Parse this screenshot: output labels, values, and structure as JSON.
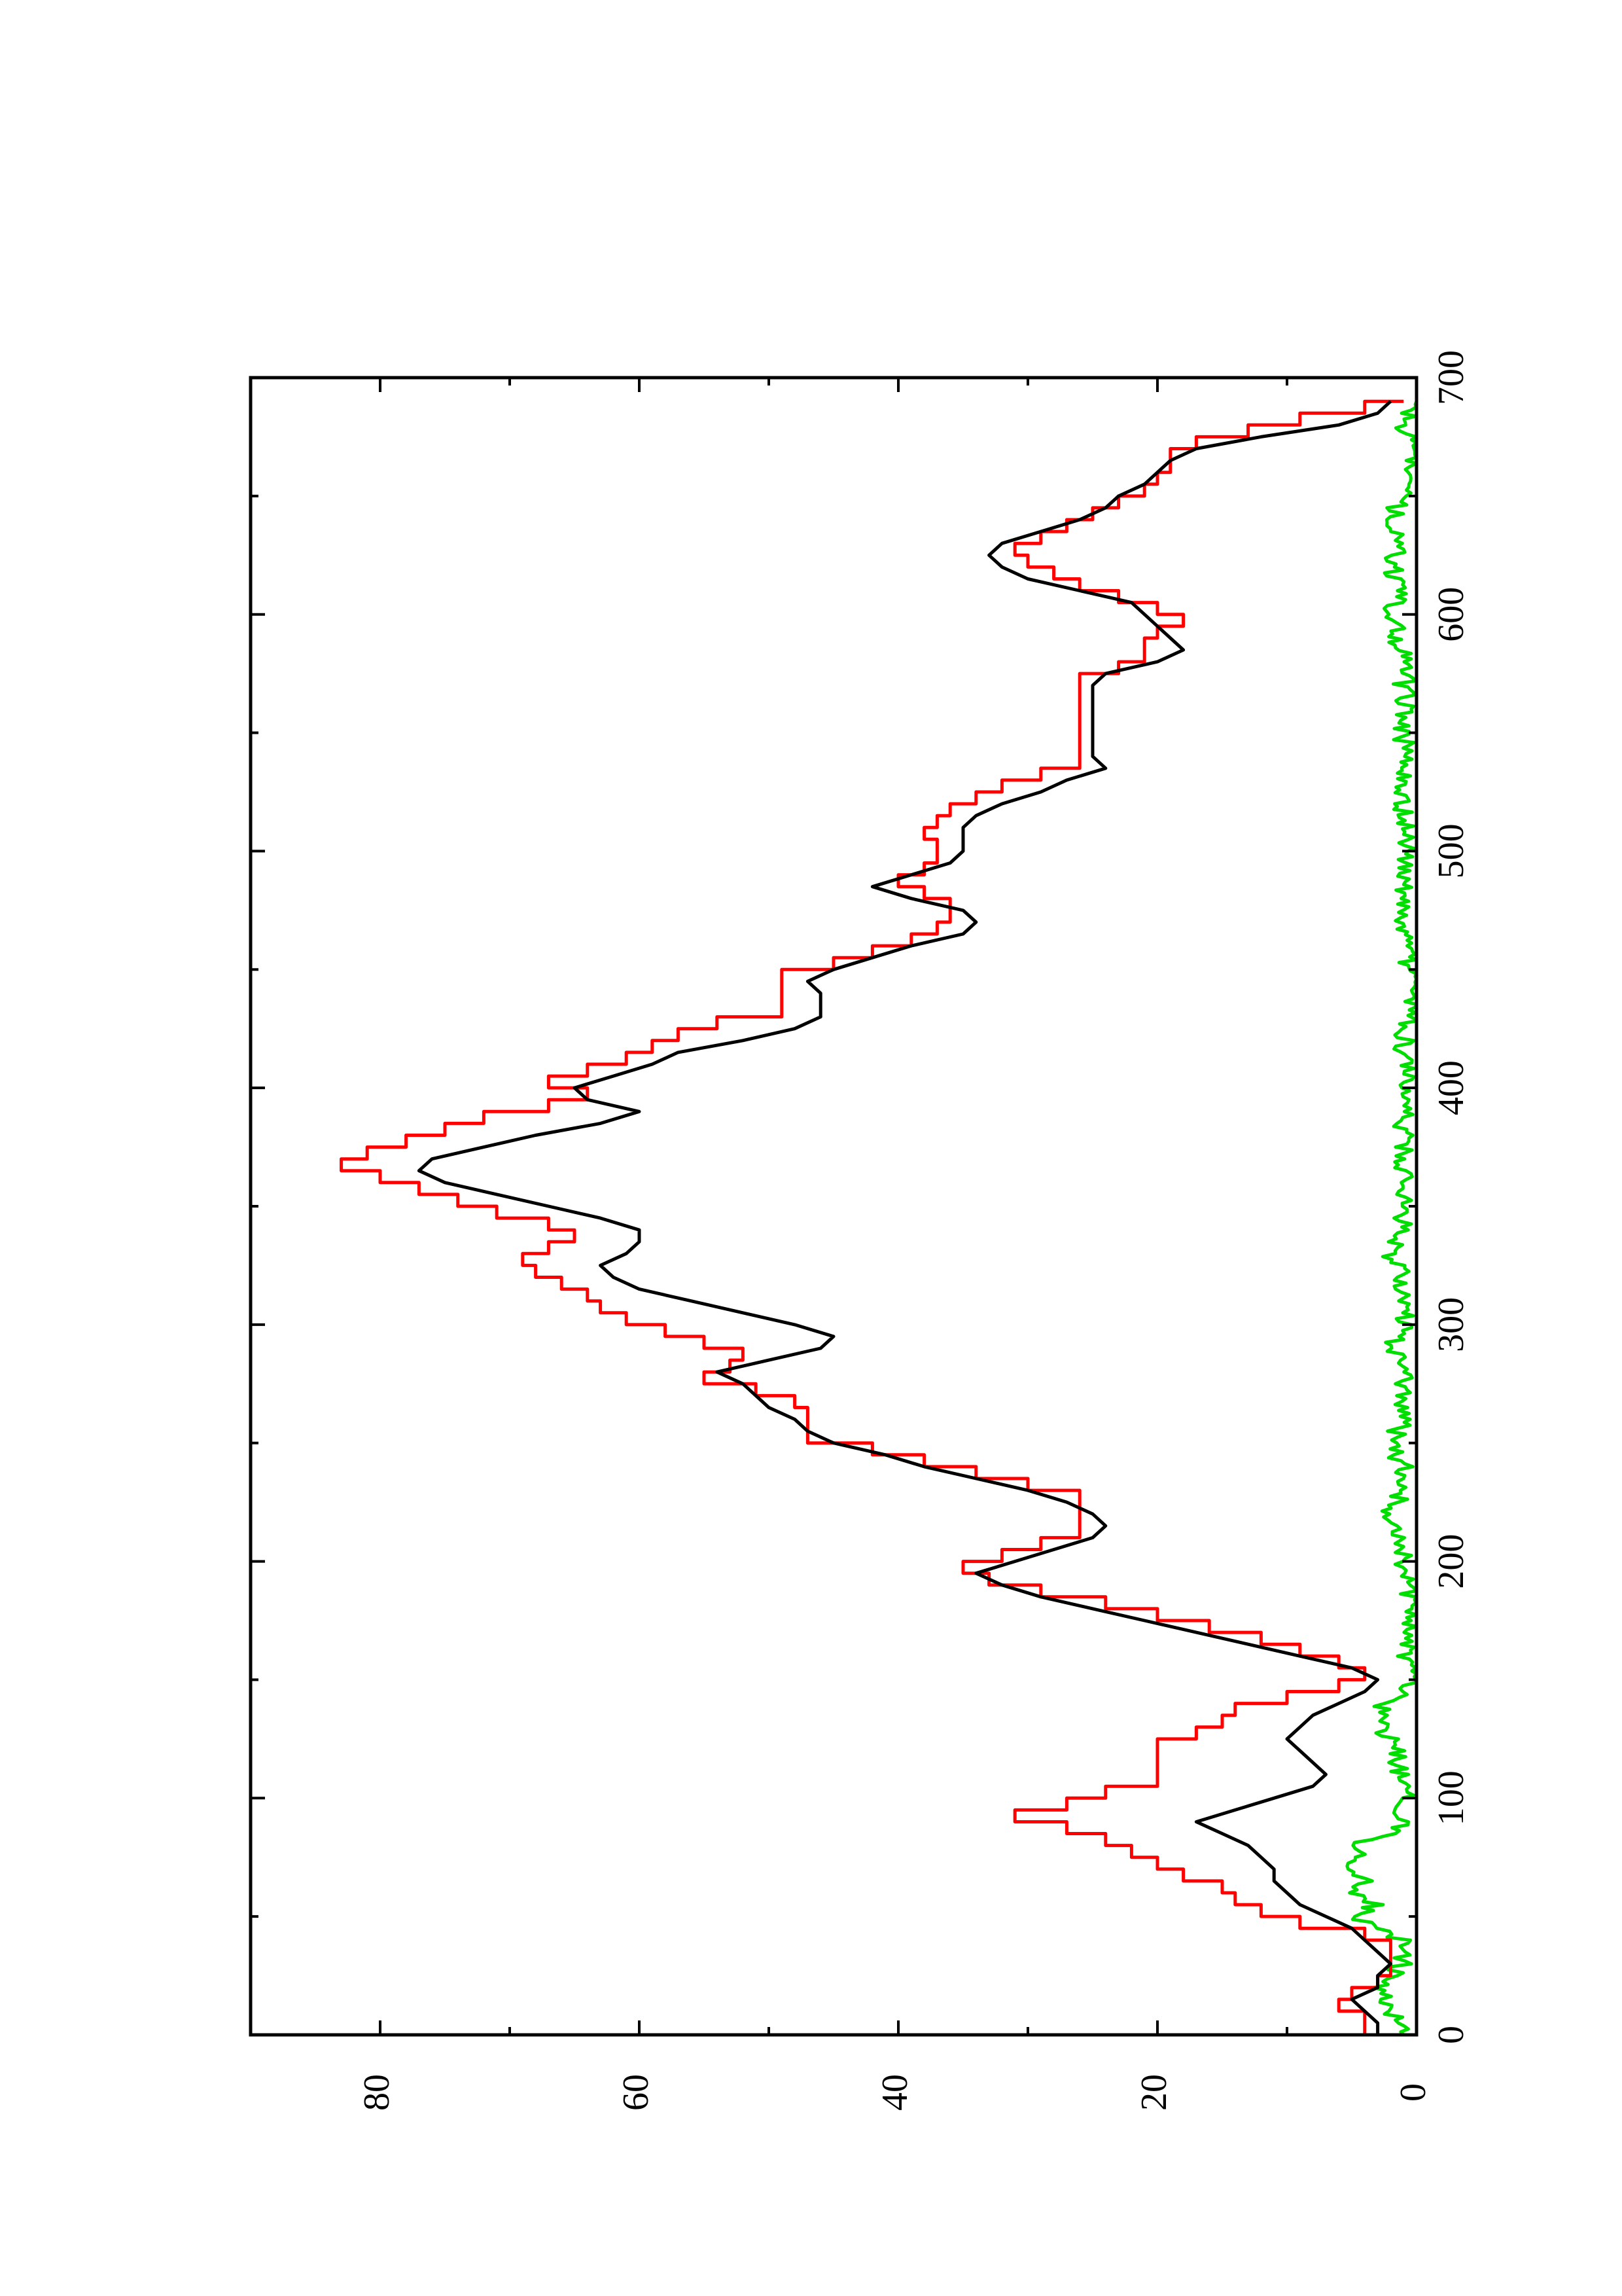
{
  "chart_data": {
    "type": "line",
    "title": "",
    "xlabel": "",
    "ylabel": "",
    "orientation": "rotated-90-ccw",
    "xlim": [
      0,
      700
    ],
    "ylim": [
      0,
      90
    ],
    "x_ticks": [
      "0",
      "100",
      "200",
      "300",
      "400",
      "500",
      "600",
      "700"
    ],
    "y_ticks": [
      "0",
      "20",
      "40",
      "60",
      "80"
    ],
    "x_minor_step": 50,
    "grid": false,
    "legend": "none",
    "series": [
      {
        "color": "#ff0000",
        "style": "step",
        "points": [
          [
            0,
            4
          ],
          [
            5,
            4
          ],
          [
            10,
            6
          ],
          [
            15,
            5
          ],
          [
            20,
            3
          ],
          [
            25,
            2
          ],
          [
            40,
            4
          ],
          [
            45,
            9
          ],
          [
            50,
            12
          ],
          [
            55,
            14
          ],
          [
            60,
            15
          ],
          [
            65,
            18
          ],
          [
            70,
            20
          ],
          [
            75,
            22
          ],
          [
            80,
            24
          ],
          [
            85,
            27
          ],
          [
            90,
            31
          ],
          [
            95,
            27
          ],
          [
            100,
            24
          ],
          [
            105,
            20
          ],
          [
            120,
            20
          ],
          [
            125,
            17
          ],
          [
            130,
            15
          ],
          [
            135,
            14
          ],
          [
            140,
            10
          ],
          [
            145,
            6
          ],
          [
            150,
            4
          ],
          [
            155,
            6
          ],
          [
            160,
            9
          ],
          [
            165,
            12
          ],
          [
            170,
            16
          ],
          [
            175,
            20
          ],
          [
            180,
            24
          ],
          [
            185,
            29
          ],
          [
            190,
            33
          ],
          [
            195,
            35
          ],
          [
            200,
            32
          ],
          [
            205,
            29
          ],
          [
            210,
            26
          ],
          [
            215,
            26
          ],
          [
            225,
            26
          ],
          [
            230,
            30
          ],
          [
            235,
            34
          ],
          [
            240,
            38
          ],
          [
            245,
            42
          ],
          [
            250,
            47
          ],
          [
            265,
            48
          ],
          [
            270,
            51
          ],
          [
            275,
            55
          ],
          [
            280,
            53
          ],
          [
            285,
            52
          ],
          [
            290,
            55
          ],
          [
            295,
            58
          ],
          [
            300,
            61
          ],
          [
            305,
            63
          ],
          [
            310,
            64
          ],
          [
            315,
            66
          ],
          [
            320,
            68
          ],
          [
            325,
            69
          ],
          [
            330,
            67
          ],
          [
            335,
            65
          ],
          [
            340,
            67
          ],
          [
            345,
            71
          ],
          [
            350,
            74
          ],
          [
            355,
            77
          ],
          [
            360,
            80
          ],
          [
            365,
            83
          ],
          [
            370,
            81
          ],
          [
            375,
            78
          ],
          [
            380,
            75
          ],
          [
            385,
            72
          ],
          [
            390,
            67
          ],
          [
            395,
            64
          ],
          [
            400,
            67
          ],
          [
            405,
            64
          ],
          [
            410,
            61
          ],
          [
            415,
            59
          ],
          [
            420,
            57
          ],
          [
            425,
            54
          ],
          [
            430,
            49
          ],
          [
            445,
            49
          ],
          [
            450,
            45
          ],
          [
            455,
            42
          ],
          [
            460,
            39
          ],
          [
            465,
            37
          ],
          [
            470,
            36
          ],
          [
            475,
            36
          ],
          [
            480,
            38
          ],
          [
            485,
            40
          ],
          [
            490,
            38
          ],
          [
            495,
            37
          ],
          [
            500,
            37
          ],
          [
            505,
            38
          ],
          [
            510,
            37
          ],
          [
            515,
            36
          ],
          [
            520,
            34
          ],
          [
            525,
            32
          ],
          [
            530,
            29
          ],
          [
            535,
            26
          ],
          [
            540,
            26
          ],
          [
            545,
            26
          ],
          [
            550,
            26
          ],
          [
            555,
            26
          ],
          [
            560,
            26
          ],
          [
            565,
            26
          ],
          [
            570,
            26
          ],
          [
            575,
            23
          ],
          [
            580,
            21
          ],
          [
            585,
            21
          ],
          [
            590,
            20
          ],
          [
            595,
            18
          ],
          [
            600,
            20
          ],
          [
            605,
            23
          ],
          [
            610,
            26
          ],
          [
            615,
            28
          ],
          [
            620,
            30
          ],
          [
            625,
            31
          ],
          [
            630,
            29
          ],
          [
            635,
            27
          ],
          [
            640,
            25
          ],
          [
            645,
            23
          ],
          [
            650,
            21
          ],
          [
            655,
            20
          ],
          [
            660,
            19
          ],
          [
            665,
            19
          ],
          [
            670,
            17
          ],
          [
            675,
            13
          ],
          [
            680,
            9
          ],
          [
            685,
            4
          ],
          [
            690,
            1
          ]
        ]
      },
      {
        "color": "#000000",
        "style": "line",
        "points": [
          [
            0,
            3
          ],
          [
            5,
            3
          ],
          [
            10,
            4
          ],
          [
            15,
            5
          ],
          [
            20,
            3
          ],
          [
            25,
            3
          ],
          [
            30,
            2
          ],
          [
            35,
            3
          ],
          [
            40,
            4
          ],
          [
            45,
            5
          ],
          [
            50,
            7
          ],
          [
            55,
            9
          ],
          [
            60,
            10
          ],
          [
            65,
            11
          ],
          [
            70,
            11
          ],
          [
            75,
            12
          ],
          [
            80,
            13
          ],
          [
            85,
            15
          ],
          [
            90,
            17
          ],
          [
            95,
            14
          ],
          [
            100,
            11
          ],
          [
            105,
            8
          ],
          [
            110,
            7
          ],
          [
            115,
            8
          ],
          [
            120,
            9
          ],
          [
            125,
            10
          ],
          [
            130,
            9
          ],
          [
            135,
            8
          ],
          [
            140,
            6
          ],
          [
            145,
            4
          ],
          [
            150,
            3
          ],
          [
            155,
            5
          ],
          [
            160,
            9
          ],
          [
            165,
            13
          ],
          [
            170,
            17
          ],
          [
            175,
            21
          ],
          [
            180,
            25
          ],
          [
            185,
            29
          ],
          [
            190,
            32
          ],
          [
            195,
            34
          ],
          [
            200,
            31
          ],
          [
            205,
            28
          ],
          [
            210,
            25
          ],
          [
            215,
            24
          ],
          [
            220,
            25
          ],
          [
            225,
            27
          ],
          [
            230,
            30
          ],
          [
            235,
            34
          ],
          [
            240,
            38
          ],
          [
            245,
            41
          ],
          [
            250,
            45
          ],
          [
            255,
            47
          ],
          [
            260,
            48
          ],
          [
            265,
            50
          ],
          [
            270,
            51
          ],
          [
            275,
            52
          ],
          [
            280,
            54
          ],
          [
            285,
            50
          ],
          [
            290,
            46
          ],
          [
            295,
            45
          ],
          [
            300,
            48
          ],
          [
            305,
            52
          ],
          [
            310,
            56
          ],
          [
            315,
            60
          ],
          [
            320,
            62
          ],
          [
            325,
            63
          ],
          [
            330,
            61
          ],
          [
            335,
            60
          ],
          [
            340,
            60
          ],
          [
            345,
            63
          ],
          [
            350,
            67
          ],
          [
            355,
            71
          ],
          [
            360,
            75
          ],
          [
            365,
            77
          ],
          [
            370,
            76
          ],
          [
            375,
            72
          ],
          [
            380,
            68
          ],
          [
            385,
            63
          ],
          [
            390,
            60
          ],
          [
            395,
            64
          ],
          [
            400,
            65
          ],
          [
            405,
            62
          ],
          [
            410,
            59
          ],
          [
            415,
            57
          ],
          [
            420,
            52
          ],
          [
            425,
            48
          ],
          [
            430,
            46
          ],
          [
            440,
            46
          ],
          [
            445,
            47
          ],
          [
            450,
            45
          ],
          [
            455,
            42
          ],
          [
            460,
            39
          ],
          [
            465,
            35
          ],
          [
            470,
            34
          ],
          [
            475,
            35
          ],
          [
            480,
            39
          ],
          [
            485,
            42
          ],
          [
            490,
            39
          ],
          [
            495,
            36
          ],
          [
            500,
            35
          ],
          [
            505,
            35
          ],
          [
            510,
            35
          ],
          [
            515,
            34
          ],
          [
            520,
            32
          ],
          [
            525,
            29
          ],
          [
            530,
            27
          ],
          [
            535,
            24
          ],
          [
            540,
            25
          ],
          [
            545,
            25
          ],
          [
            550,
            25
          ],
          [
            555,
            25
          ],
          [
            560,
            25
          ],
          [
            565,
            25
          ],
          [
            570,
            25
          ],
          [
            575,
            24
          ],
          [
            580,
            20
          ],
          [
            585,
            18
          ],
          [
            590,
            19
          ],
          [
            595,
            20
          ],
          [
            600,
            21
          ],
          [
            605,
            22
          ],
          [
            610,
            26
          ],
          [
            615,
            30
          ],
          [
            620,
            32
          ],
          [
            625,
            33
          ],
          [
            630,
            32
          ],
          [
            635,
            29
          ],
          [
            640,
            26
          ],
          [
            645,
            24
          ],
          [
            650,
            23
          ],
          [
            655,
            21
          ],
          [
            660,
            20
          ],
          [
            665,
            19
          ],
          [
            670,
            17
          ],
          [
            675,
            12
          ],
          [
            680,
            6
          ],
          [
            685,
            3
          ],
          [
            690,
            2
          ]
        ]
      },
      {
        "color": "#00dd00",
        "style": "line",
        "noise": true,
        "points": [
          [
            0,
            1
          ],
          [
            10,
            2
          ],
          [
            20,
            3
          ],
          [
            30,
            1
          ],
          [
            40,
            1
          ],
          [
            45,
            3
          ],
          [
            50,
            5
          ],
          [
            55,
            3
          ],
          [
            60,
            5
          ],
          [
            65,
            4
          ],
          [
            70,
            6
          ],
          [
            75,
            4
          ],
          [
            80,
            5
          ],
          [
            85,
            2
          ],
          [
            90,
            1
          ],
          [
            100,
            1
          ],
          [
            110,
            1
          ],
          [
            115,
            2
          ],
          [
            120,
            1
          ],
          [
            130,
            3
          ],
          [
            135,
            2
          ],
          [
            140,
            3
          ],
          [
            145,
            1
          ],
          [
            150,
            0
          ],
          [
            160,
            1
          ],
          [
            170,
            1
          ],
          [
            180,
            0
          ],
          [
            190,
            1
          ],
          [
            200,
            1
          ],
          [
            210,
            1
          ],
          [
            220,
            2
          ],
          [
            230,
            1
          ],
          [
            240,
            1
          ],
          [
            250,
            2
          ],
          [
            260,
            1
          ],
          [
            270,
            1
          ],
          [
            280,
            1
          ],
          [
            290,
            2
          ],
          [
            300,
            1
          ],
          [
            310,
            1
          ],
          [
            320,
            1
          ],
          [
            330,
            2
          ],
          [
            340,
            1
          ],
          [
            350,
            1
          ],
          [
            360,
            1
          ],
          [
            370,
            1
          ],
          [
            380,
            1
          ],
          [
            390,
            1
          ],
          [
            400,
            1
          ],
          [
            420,
            1
          ],
          [
            440,
            0
          ],
          [
            460,
            1
          ],
          [
            480,
            1
          ],
          [
            500,
            1
          ],
          [
            520,
            1
          ],
          [
            540,
            1
          ],
          [
            560,
            1
          ],
          [
            580,
            1
          ],
          [
            600,
            2
          ],
          [
            610,
            1
          ],
          [
            620,
            2
          ],
          [
            630,
            1
          ],
          [
            640,
            2
          ],
          [
            650,
            1
          ],
          [
            660,
            1
          ],
          [
            670,
            0
          ],
          [
            680,
            1
          ],
          [
            690,
            0
          ]
        ]
      }
    ]
  }
}
